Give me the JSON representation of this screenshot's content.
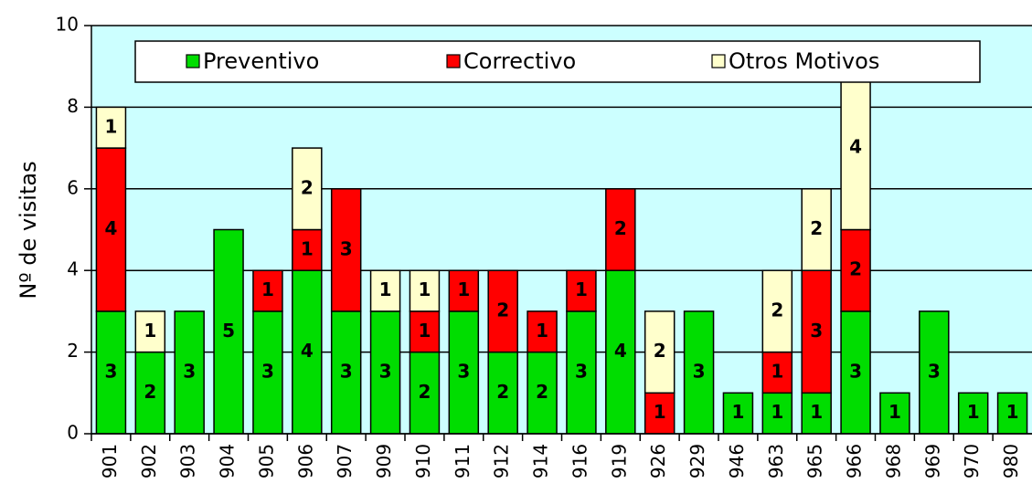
{
  "chart_data": {
    "type": "stacked_bar",
    "y_label": "Nº de visitas",
    "categories": [
      "901",
      "902",
      "903",
      "904",
      "905",
      "906",
      "907",
      "909",
      "910",
      "911",
      "912",
      "914",
      "916",
      "919",
      "926",
      "929",
      "946",
      "963",
      "965",
      "966",
      "968",
      "969",
      "970",
      "980"
    ],
    "series": [
      {
        "name": "Preventivo",
        "color": "#00dd00",
        "values": [
          3,
          2,
          3,
          5,
          3,
          4,
          3,
          3,
          2,
          3,
          2,
          2,
          3,
          4,
          0,
          3,
          1,
          1,
          1,
          3,
          1,
          3,
          1,
          1
        ]
      },
      {
        "name": "Correctivo",
        "color": "#ff0000",
        "values": [
          4,
          0,
          0,
          0,
          1,
          1,
          3,
          0,
          1,
          1,
          2,
          1,
          1,
          2,
          1,
          0,
          0,
          1,
          3,
          2,
          0,
          0,
          0,
          0
        ]
      },
      {
        "name": "Otros Motivos",
        "color": "#ffffcc",
        "values": [
          1,
          1,
          0,
          0,
          0,
          2,
          0,
          1,
          1,
          0,
          0,
          0,
          0,
          0,
          2,
          0,
          0,
          2,
          2,
          4,
          0,
          0,
          0,
          0
        ]
      }
    ],
    "ylim": [
      0,
      10
    ],
    "yticks": [
      0,
      2,
      4,
      6,
      8,
      10
    ],
    "grid": true,
    "plot_background": "#ccffff",
    "legend": "top"
  }
}
